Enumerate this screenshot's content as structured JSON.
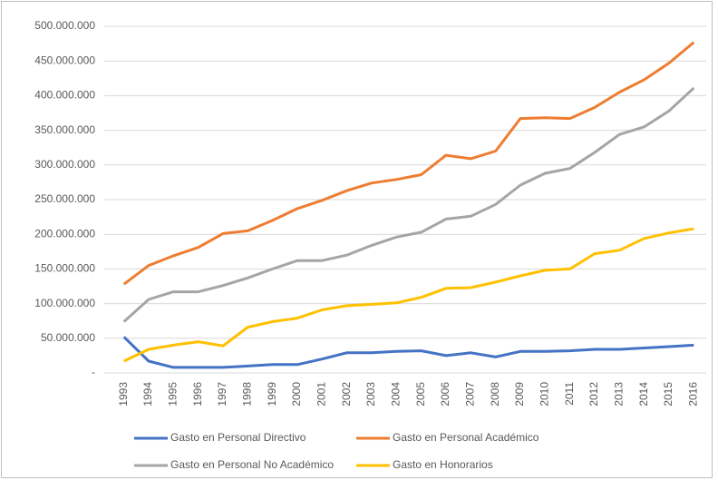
{
  "chart_data": {
    "type": "line",
    "categories": [
      "1993",
      "1994",
      "1995",
      "1996",
      "1997",
      "1998",
      "1999",
      "2000",
      "2001",
      "2002",
      "2003",
      "2004",
      "2005",
      "2006",
      "2007",
      "2008",
      "2009",
      "2010",
      "2011",
      "2012",
      "2013",
      "2014",
      "2015",
      "2016"
    ],
    "series": [
      {
        "name": "Gasto en Personal Directivo",
        "color": "#4472c4",
        "values": [
          52000000,
          17000000,
          8000000,
          8000000,
          8000000,
          10000000,
          12000000,
          12000000,
          20000000,
          29000000,
          29000000,
          31000000,
          32000000,
          25000000,
          29000000,
          23000000,
          31000000,
          31000000,
          32000000,
          34000000,
          34000000,
          36000000,
          38000000,
          40000000
        ]
      },
      {
        "name": "Gasto en Personal Académico",
        "color": "#ed7d31",
        "values": [
          128000000,
          155000000,
          169000000,
          181000000,
          201000000,
          205000000,
          220000000,
          237000000,
          249000000,
          263000000,
          274000000,
          279000000,
          286000000,
          314000000,
          309000000,
          320000000,
          367000000,
          368000000,
          367000000,
          383000000,
          405000000,
          423000000,
          447000000,
          477000000
        ]
      },
      {
        "name": "Gasto en Personal No Académico",
        "color": "#a5a5a5",
        "values": [
          74000000,
          106000000,
          117000000,
          117000000,
          126000000,
          137000000,
          150000000,
          162000000,
          162000000,
          170000000,
          184000000,
          196000000,
          203000000,
          222000000,
          226000000,
          243000000,
          271000000,
          288000000,
          295000000,
          318000000,
          344000000,
          355000000,
          378000000,
          411000000
        ]
      },
      {
        "name": "Gasto en Honorarios",
        "color": "#ffc000",
        "values": [
          17000000,
          34000000,
          40000000,
          45000000,
          39000000,
          66000000,
          74000000,
          79000000,
          91000000,
          97000000,
          99000000,
          101000000,
          109000000,
          122000000,
          123000000,
          131000000,
          140000000,
          148000000,
          150000000,
          172000000,
          177000000,
          194000000,
          202000000,
          208000000
        ]
      }
    ],
    "ylim": [
      0,
      500000000
    ],
    "yticks": [
      {
        "value": 0,
        "label": "-"
      },
      {
        "value": 50000000,
        "label": "50.000.000"
      },
      {
        "value": 100000000,
        "label": "100.000.000"
      },
      {
        "value": 150000000,
        "label": "150.000.000"
      },
      {
        "value": 200000000,
        "label": "200.000.000"
      },
      {
        "value": 250000000,
        "label": "250.000.000"
      },
      {
        "value": 300000000,
        "label": "300.000.000"
      },
      {
        "value": 350000000,
        "label": "350.000.000"
      },
      {
        "value": 400000000,
        "label": "400.000.000"
      },
      {
        "value": 450000000,
        "label": "450.000.000"
      },
      {
        "value": 500000000,
        "label": "500.000.000"
      }
    ],
    "grid": true
  }
}
